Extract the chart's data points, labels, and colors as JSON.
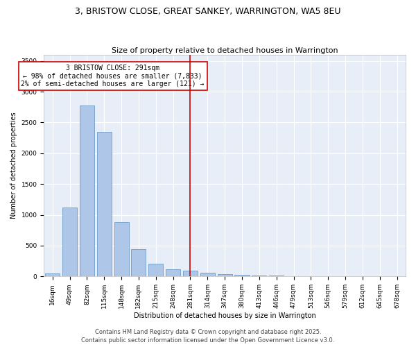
{
  "title": "3, BRISTOW CLOSE, GREAT SANKEY, WARRINGTON, WA5 8EU",
  "subtitle": "Size of property relative to detached houses in Warrington",
  "xlabel": "Distribution of detached houses by size in Warrington",
  "ylabel": "Number of detached properties",
  "categories": [
    "16sqm",
    "49sqm",
    "82sqm",
    "115sqm",
    "148sqm",
    "182sqm",
    "215sqm",
    "248sqm",
    "281sqm",
    "314sqm",
    "347sqm",
    "380sqm",
    "413sqm",
    "446sqm",
    "479sqm",
    "513sqm",
    "546sqm",
    "579sqm",
    "612sqm",
    "645sqm",
    "678sqm"
  ],
  "values": [
    50,
    1120,
    2780,
    2350,
    880,
    440,
    205,
    115,
    90,
    65,
    40,
    30,
    15,
    10,
    5,
    3,
    2,
    1,
    1,
    0,
    0
  ],
  "bar_color": "#aec6e8",
  "bar_edge_color": "#5a8fc0",
  "vline_x_index": 8,
  "vline_color": "#cc0000",
  "annotation_text": "3 BRISTOW CLOSE: 291sqm\n← 98% of detached houses are smaller (7,833)\n2% of semi-detached houses are larger (121) →",
  "annotation_box_color": "#cc0000",
  "ylim": [
    0,
    3600
  ],
  "yticks": [
    0,
    500,
    1000,
    1500,
    2000,
    2500,
    3000,
    3500
  ],
  "background_color": "#e8eef7",
  "grid_color": "#ffffff",
  "footer_line1": "Contains HM Land Registry data © Crown copyright and database right 2025.",
  "footer_line2": "Contains public sector information licensed under the Open Government Licence v3.0.",
  "title_fontsize": 9,
  "subtitle_fontsize": 8,
  "annotation_fontsize": 7,
  "footer_fontsize": 6,
  "axis_fontsize": 7,
  "tick_fontsize": 6.5
}
